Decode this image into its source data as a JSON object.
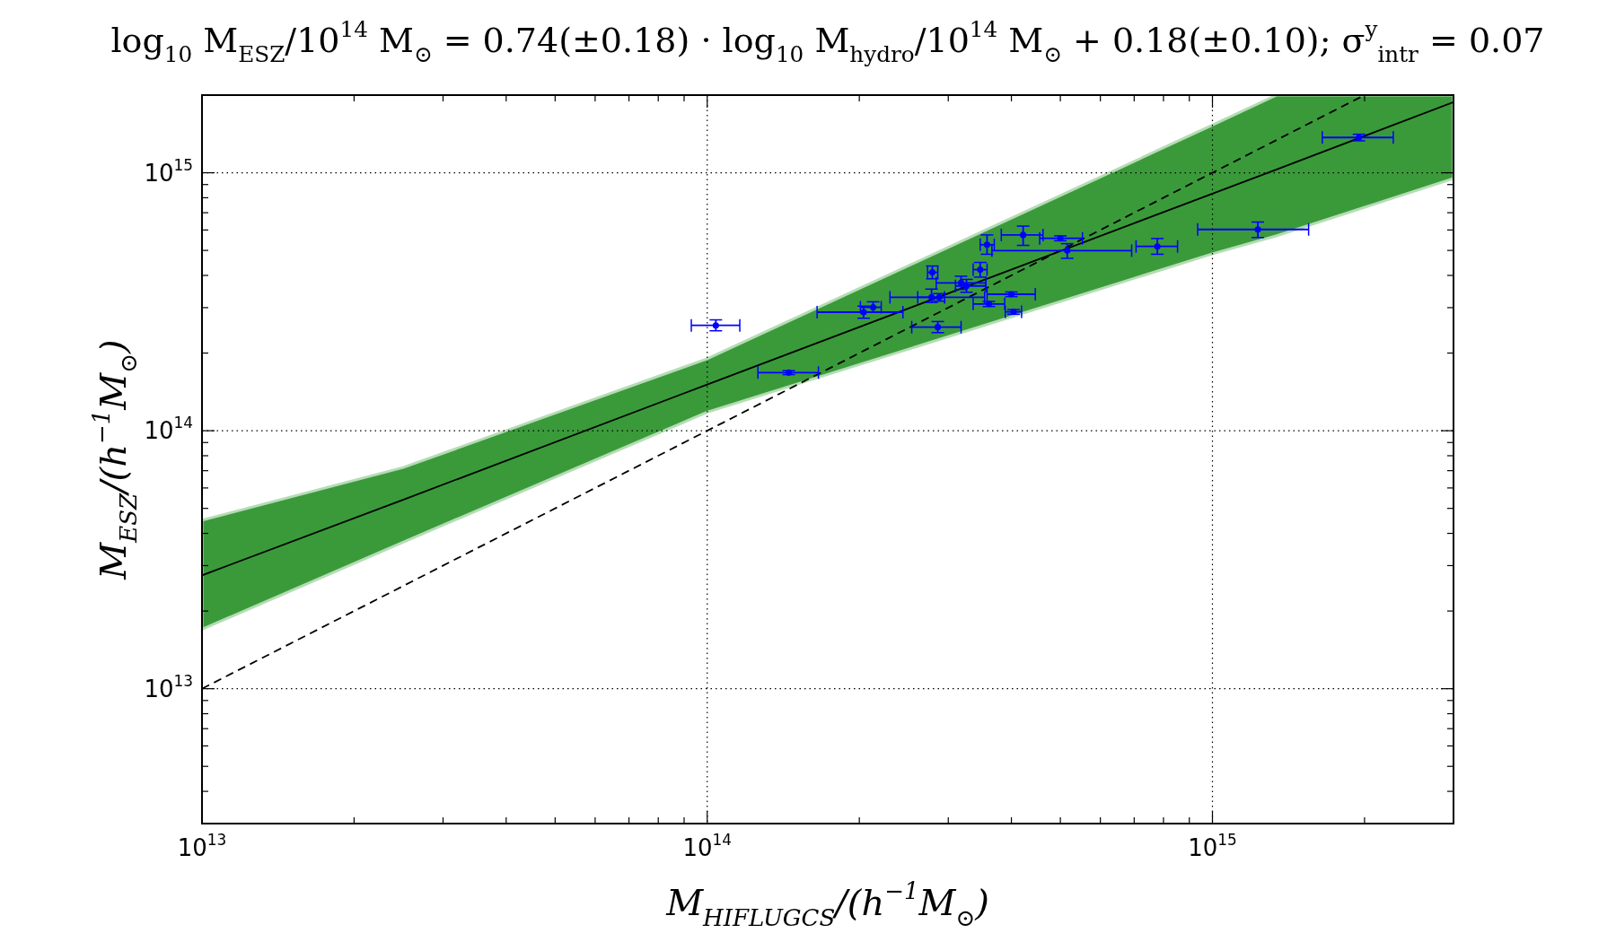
{
  "chart_data": {
    "type": "scatter",
    "title": "log$_{10}$ M$_{ESZ}$/10$^{14}$ M$_{⊙}$ = 0.74(±0.18) · log$_{10}$ M$_{hydro}$/10$^{14}$ M$_{⊙}$ + 0.18(±0.10); σ$^{y}$$_{intr}$ = 0.07",
    "xlabel": "M$_{HIFLUGCS}$/(h$^{−1}$M$_{⊙}$)",
    "ylabel": "M$_{ESZ}$/(h$^{−1}$M$_{⊙}$)",
    "log": "xy",
    "grid": true,
    "xlim": [
      10000000000000.0,
      3000000000000000.0
    ],
    "ylim": [
      3000000000000.0,
      2000000000000000.0
    ],
    "xticks": [
      {
        "value": 10000000000000.0,
        "label": "10$^{13}$"
      },
      {
        "value": 20000000000000.0,
        "label": null
      },
      {
        "value": 30000000000000.0,
        "label": null
      },
      {
        "value": 40000000000000.0,
        "label": null
      },
      {
        "value": 50000000000000.0,
        "label": null
      },
      {
        "value": 60000000000000.0,
        "label": null
      },
      {
        "value": 70000000000000.0,
        "label": null
      },
      {
        "value": 80000000000000.0,
        "label": null
      },
      {
        "value": 90000000000000.0,
        "label": null
      },
      {
        "value": 100000000000000.0,
        "label": "10$^{14}$"
      },
      {
        "value": 200000000000000.0,
        "label": null
      },
      {
        "value": 300000000000000.0,
        "label": null
      },
      {
        "value": 400000000000000.0,
        "label": null
      },
      {
        "value": 500000000000000.0,
        "label": null
      },
      {
        "value": 600000000000000.0,
        "label": null
      },
      {
        "value": 700000000000000.0,
        "label": null
      },
      {
        "value": 800000000000000.0,
        "label": null
      },
      {
        "value": 900000000000000.0,
        "label": null
      },
      {
        "value": 1000000000000000.0,
        "label": "10$^{15}$"
      },
      {
        "value": 2000000000000000.0,
        "label": null
      }
    ],
    "yticks": [
      {
        "value": 4000000000000.0,
        "label": null
      },
      {
        "value": 5000000000000.0,
        "label": null
      },
      {
        "value": 6000000000000.0,
        "label": null
      },
      {
        "value": 7000000000000.0,
        "label": null
      },
      {
        "value": 8000000000000.0,
        "label": null
      },
      {
        "value": 9000000000000.0,
        "label": null
      },
      {
        "value": 10000000000000.0,
        "label": "10$^{13}$"
      },
      {
        "value": 20000000000000.0,
        "label": null
      },
      {
        "value": 30000000000000.0,
        "label": null
      },
      {
        "value": 40000000000000.0,
        "label": null
      },
      {
        "value": 50000000000000.0,
        "label": null
      },
      {
        "value": 60000000000000.0,
        "label": null
      },
      {
        "value": 70000000000000.0,
        "label": null
      },
      {
        "value": 80000000000000.0,
        "label": null
      },
      {
        "value": 90000000000000.0,
        "label": null
      },
      {
        "value": 100000000000000.0,
        "label": "10$^{14}$"
      },
      {
        "value": 200000000000000.0,
        "label": null
      },
      {
        "value": 300000000000000.0,
        "label": null
      },
      {
        "value": 400000000000000.0,
        "label": null
      },
      {
        "value": 500000000000000.0,
        "label": null
      },
      {
        "value": 600000000000000.0,
        "label": null
      },
      {
        "value": 700000000000000.0,
        "label": null
      },
      {
        "value": 800000000000000.0,
        "label": null
      },
      {
        "value": 900000000000000.0,
        "label": null
      },
      {
        "value": 1000000000000000.0,
        "label": "10$^{15}$"
      }
    ],
    "series": [
      {
        "type": "line",
        "color": "#000000",
        "line_style": "solid",
        "x": [
          10000000000000.0,
          25000000000000.0,
          100000000000000.0,
          1000000000000000.0,
          1340000000000000.0,
          3000000000000000.0
        ],
        "values": [
          27500000000000.0,
          54000000000000.0,
          151000000000000.0,
          830000000000000.0,
          1030000000000000.0,
          1880000000000000.0
        ],
        "lower": [
          17000000000000.0,
          37000000000000.0,
          118000000000000.0,
          485000000000000.0,
          570000000000000.0,
          950000000000000.0
        ],
        "upper": [
          45000000000000.0,
          72000000000000.0,
          190000000000000.0,
          1530000000000000.0,
          2000000000000000.0,
          2000000000000000.0
        ]
      },
      {
        "type": "line",
        "color": "#000000",
        "line_style": "dashed",
        "x": [
          10000000000000.0,
          2000000000000000.0
        ],
        "values": [
          10000000000000.0,
          2000000000000000.0
        ]
      },
      {
        "color": "#0000ff",
        "marker": "circle",
        "x": [
          1950000000000000.0,
          1230000000000000.0,
          778000000000000.0,
          516000000000000.0,
          422000000000000.0,
          500000000000000.0,
          358000000000000.0,
          279000000000000.0,
          347000000000000.0,
          318000000000000.0,
          326000000000000.0,
          278000000000000.0,
          288000000000000.0,
          400000000000000.0,
          361000000000000.0,
          404000000000000.0,
          286000000000000.0,
          104000000000000.0,
          204000000000000.0,
          213000000000000.0,
          145000000000000.0
        ],
        "values": [
          1370000000000000.0,
          603000000000000.0,
          518000000000000.0,
          499000000000000.0,
          574000000000000.0,
          557000000000000.0,
          526000000000000.0,
          411000000000000.0,
          421000000000000.0,
          374000000000000.0,
          364000000000000.0,
          329000000000000.0,
          329000000000000.0,
          338000000000000.0,
          310000000000000.0,
          289000000000000.0,
          252000000000000.0,
          256000000000000.0,
          288000000000000.0,
          301000000000000.0,
          168000000000000.0
        ],
        "xerrors": [
          [
            1650000000000000.0,
            2280000000000000.0
          ],
          [
            935000000000000.0,
            1550000000000000.0
          ],
          [
            706000000000000.0,
            853000000000000.0
          ],
          [
            366000000000000.0,
            692000000000000.0
          ],
          [
            382000000000000.0,
            462000000000000.0
          ],
          [
            455000000000000.0,
            553000000000000.0
          ],
          [
            347000000000000.0,
            370000000000000.0
          ],
          [
            273000000000000.0,
            286000000000000.0
          ],
          [
            336000000000000.0,
            358000000000000.0
          ],
          [
            284000000000000.0,
            356000000000000.0
          ],
          [
            310000000000000.0,
            356000000000000.0
          ],
          [
            230000000000000.0,
            295000000000000.0
          ],
          [
            261000000000000.0,
            354000000000000.0
          ],
          [
            358000000000000.0,
            446000000000000.0
          ],
          [
            336000000000000.0,
            388000000000000.0
          ],
          [
            389000000000000.0,
            419000000000000.0
          ],
          [
            254000000000000.0,
            318000000000000.0
          ],
          [
            93000000000000.0,
            116000000000000.0
          ],
          [
            165000000000000.0,
            244000000000000.0
          ],
          [
            201000000000000.0,
            221000000000000.0
          ],
          [
            126000000000000.0,
            166000000000000.0
          ]
        ],
        "errors": [
          [
            1330000000000000.0,
            1410000000000000.0
          ],
          [
            561000000000000.0,
            644000000000000.0
          ],
          [
            483000000000000.0,
            556000000000000.0
          ],
          [
            466000000000000.0,
            531000000000000.0
          ],
          [
            523000000000000.0,
            621000000000000.0
          ],
          [
            545000000000000.0,
            569000000000000.0
          ],
          [
            483000000000000.0,
            574000000000000.0
          ],
          [
            388000000000000.0,
            435000000000000.0
          ],
          [
            394000000000000.0,
            449000000000000.0
          ],
          [
            353000000000000.0,
            397000000000000.0
          ],
          [
            344000000000000.0,
            386000000000000.0
          ],
          [
            314000000000000.0,
            354000000000000.0
          ],
          [
            318000000000000.0,
            340000000000000.0
          ],
          [
            331000000000000.0,
            345000000000000.0
          ],
          [
            303000000000000.0,
            317000000000000.0
          ],
          [
            283000000000000.0,
            295000000000000.0
          ],
          [
            240000000000000.0,
            265000000000000.0
          ],
          [
            244000000000000.0,
            269000000000000.0
          ],
          [
            273000000000000.0,
            304000000000000.0
          ],
          [
            288000000000000.0,
            316000000000000.0
          ],
          [
            165000000000000.0,
            171000000000000.0
          ]
        ]
      }
    ]
  }
}
